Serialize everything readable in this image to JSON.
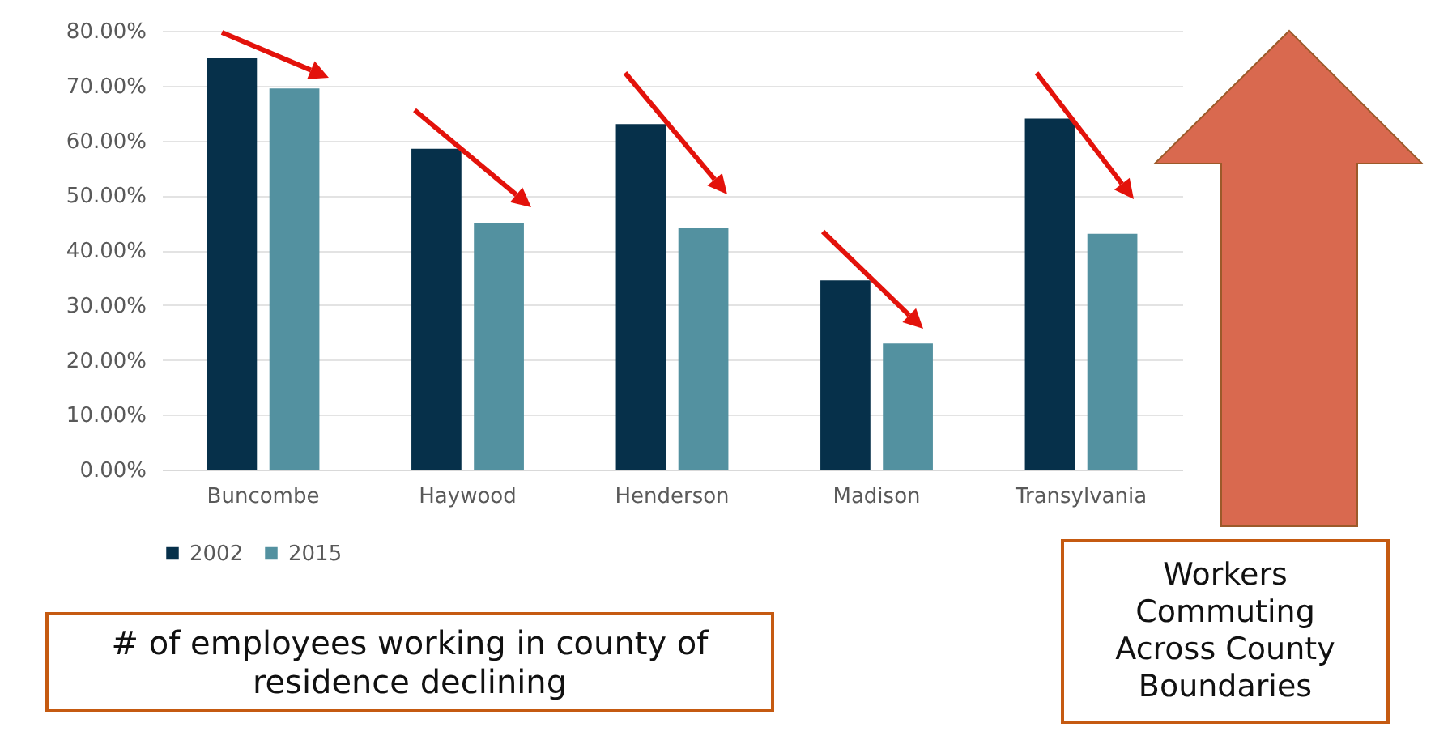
{
  "chart_data": {
    "type": "bar",
    "categories": [
      "Buncombe",
      "Haywood",
      "Henderson",
      "Madison",
      "Transylvania"
    ],
    "series": [
      {
        "name": "2002",
        "color": "#06304a",
        "values": [
          75,
          58.5,
          63,
          34.5,
          64
        ]
      },
      {
        "name": "2015",
        "color": "#5391a0",
        "values": [
          69.5,
          45,
          44,
          23,
          43
        ]
      }
    ],
    "ylim": [
      0,
      80
    ],
    "yticks": [
      {
        "value": 0,
        "label": "0.00%"
      },
      {
        "value": 10,
        "label": "10.00%"
      },
      {
        "value": 20,
        "label": "20.00%"
      },
      {
        "value": 30,
        "label": "30.00%"
      },
      {
        "value": 40,
        "label": "40.00%"
      },
      {
        "value": 50,
        "label": "50.00%"
      },
      {
        "value": 60,
        "label": "60.00%"
      },
      {
        "value": 70,
        "label": "70.00%"
      },
      {
        "value": 80,
        "label": "80.00%"
      }
    ],
    "grid": "y",
    "legend": "bottom",
    "annotations": [
      "# of employees working in county of residence declining",
      "Workers Commuting Across County Boundaries"
    ]
  }
}
